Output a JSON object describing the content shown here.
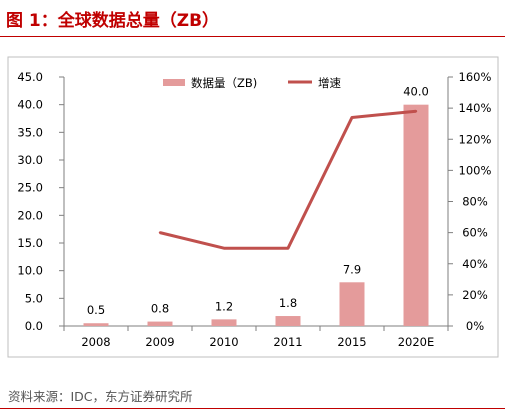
{
  "figure": {
    "title": "图 1：全球数据总量（ZB）",
    "source": "资料来源：IDC，东方证券研究所"
  },
  "colors": {
    "title": "#c00000",
    "bar": "#e49b9b",
    "line": "#c0504d",
    "rule": "#c00000",
    "axis": "#7f7f7f"
  },
  "chart_data": {
    "type": "bar",
    "categories": [
      "2008",
      "2009",
      "2010",
      "2011",
      "2015",
      "2020E"
    ],
    "series": [
      {
        "name": "数据量（ZB)",
        "type": "bar",
        "axis": "left",
        "values": [
          0.5,
          0.8,
          1.2,
          1.8,
          7.9,
          40.0
        ],
        "labels": [
          "0.5",
          "0.8",
          "1.2",
          "1.8",
          "7.9",
          "40.0"
        ]
      },
      {
        "name": "增速",
        "type": "line",
        "axis": "right",
        "values": [
          null,
          60,
          50,
          50,
          134,
          138
        ]
      }
    ],
    "y_left": {
      "min": 0,
      "max": 45,
      "step": 5,
      "ticks": [
        "0.0",
        "5.0",
        "10.0",
        "15.0",
        "20.0",
        "25.0",
        "30.0",
        "35.0",
        "40.0",
        "45.0"
      ]
    },
    "y_right": {
      "min": 0,
      "max": 160,
      "step": 20,
      "ticks": [
        "0%",
        "20%",
        "40%",
        "60%",
        "80%",
        "100%",
        "120%",
        "140%",
        "160%"
      ]
    },
    "legend_position": "top",
    "grid": false
  }
}
